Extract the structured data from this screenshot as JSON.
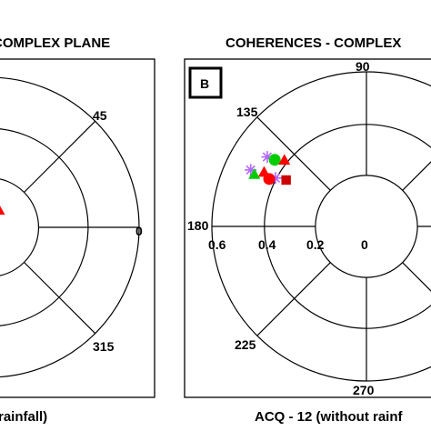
{
  "chart_data": [
    {
      "type": "scatter",
      "coordinate_system": "polar",
      "title": "COMPLEX PLANE",
      "caption": "rainfall)",
      "angle_labels": [
        "0",
        "45",
        "315"
      ],
      "radial_labels": [],
      "grid": true,
      "series": [
        {
          "color": "#ff0000",
          "marker": "triangle",
          "points": [
            {
              "angle": 60,
              "radius": 0.08
            }
          ]
        },
        {
          "color": "#ff00ff",
          "marker": "star",
          "points": [
            {
              "angle": 0,
              "radius": 0.02
            }
          ]
        }
      ]
    },
    {
      "type": "scatter",
      "coordinate_system": "polar",
      "panel_label": "B",
      "title": "COHERENCES - COMPLEX",
      "caption": "ACQ - 12 (without rainf",
      "angle_labels": [
        "90",
        "135",
        "180",
        "225",
        "270"
      ],
      "radial_labels": [
        "0.6",
        "0.4",
        "0.2",
        "0"
      ],
      "rlim": [
        0,
        0.6
      ],
      "grid": true,
      "series": [
        {
          "color": "#b366ff",
          "marker": "star",
          "points": [
            {
              "angle": 145,
              "radius": 0.47
            },
            {
              "angle": 154,
              "radius": 0.5
            },
            {
              "angle": 152,
              "radius": 0.4
            }
          ]
        },
        {
          "color": "#00cc00",
          "marker": "circle",
          "points": [
            {
              "angle": 144,
              "radius": 0.44
            }
          ]
        },
        {
          "color": "#ff0000",
          "marker": "triangle",
          "points": [
            {
              "angle": 141,
              "radius": 0.41
            },
            {
              "angle": 152,
              "radius": 0.45
            }
          ]
        },
        {
          "color": "#00cc00",
          "marker": "triangle",
          "points": [
            {
              "angle": 155,
              "radius": 0.48
            }
          ]
        },
        {
          "color": "#ff0000",
          "marker": "circle",
          "points": [
            {
              "angle": 154,
              "radius": 0.42
            }
          ]
        },
        {
          "color": "#cc0000",
          "marker": "square",
          "points": [
            {
              "angle": 150,
              "radius": 0.36
            }
          ]
        }
      ]
    }
  ]
}
